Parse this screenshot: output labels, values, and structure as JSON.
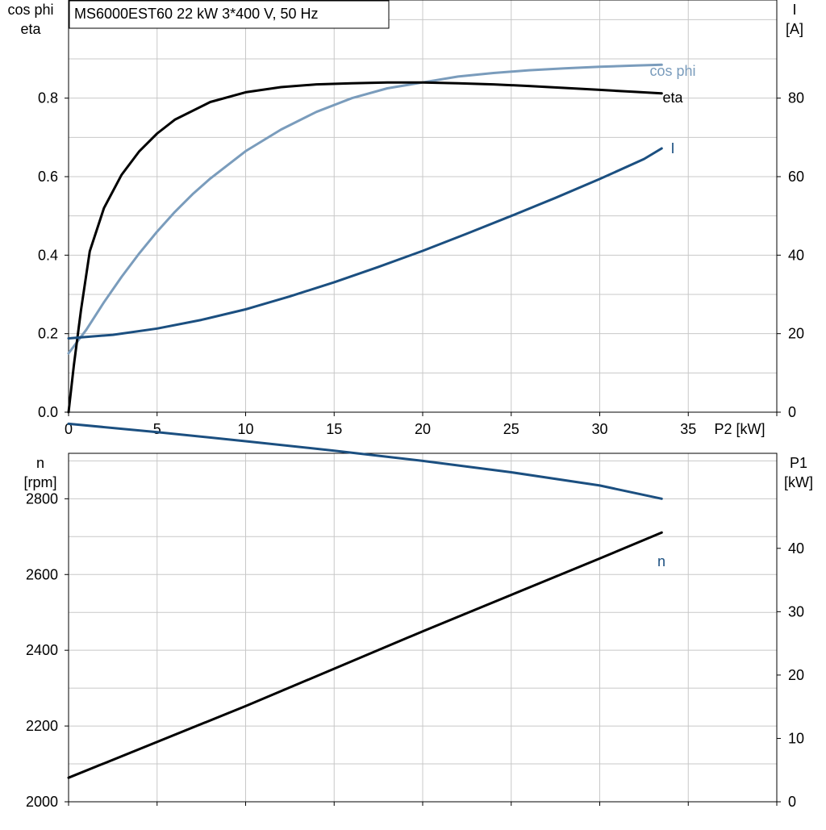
{
  "header": {
    "title": "MS6000EST60   22 kW   3*400 V, 50 Hz"
  },
  "colors": {
    "cos_phi": "#7a9cbc",
    "eta": "#000000",
    "current": "#1b4f80",
    "speed": "#1b4f80",
    "p1": "#000000",
    "grid": "#c8c8c8"
  },
  "chart_data": [
    {
      "type": "line",
      "title": "MS6000EST60   22 kW   3*400 V, 50 Hz",
      "xlabel": "P2 [kW]",
      "xlim": [
        0,
        40
      ],
      "xticks": [
        "0",
        "5",
        "10",
        "15",
        "20",
        "25",
        "30",
        "35"
      ],
      "ylabel_left": [
        "cos phi",
        "eta"
      ],
      "ylim_left": [
        0,
        1.05
      ],
      "yticks_left": [
        "0.0",
        "0.2",
        "0.4",
        "0.6",
        "0.8"
      ],
      "ylabel_right": [
        "I",
        "[A]"
      ],
      "ylim_right": [
        0,
        105
      ],
      "yticks_right": [
        "0",
        "20",
        "40",
        "60",
        "80"
      ],
      "grid": true,
      "series": [
        {
          "name": "cos phi",
          "axis": "left",
          "color": "#7a9cbc",
          "x": [
            0,
            0.5,
            1,
            2,
            3,
            4,
            5,
            6,
            7,
            8,
            10,
            12,
            14,
            16,
            18,
            20,
            22,
            24,
            26,
            28,
            30,
            32,
            33.5
          ],
          "y": [
            0.15,
            0.18,
            0.21,
            0.28,
            0.345,
            0.405,
            0.46,
            0.51,
            0.555,
            0.595,
            0.665,
            0.72,
            0.765,
            0.8,
            0.825,
            0.84,
            0.855,
            0.864,
            0.871,
            0.876,
            0.88,
            0.883,
            0.885
          ]
        },
        {
          "name": "eta",
          "axis": "left",
          "color": "#000000",
          "x": [
            0,
            0.3,
            0.7,
            1.2,
            2,
            3,
            4,
            5,
            6,
            8,
            10,
            12,
            14,
            16,
            18,
            20,
            22,
            24,
            26,
            28,
            30,
            32,
            33.5
          ],
          "y": [
            0,
            0.12,
            0.26,
            0.41,
            0.52,
            0.605,
            0.665,
            0.71,
            0.745,
            0.79,
            0.815,
            0.828,
            0.835,
            0.838,
            0.84,
            0.84,
            0.838,
            0.835,
            0.831,
            0.826,
            0.821,
            0.816,
            0.812
          ]
        },
        {
          "name": "I",
          "axis": "right",
          "color": "#1b4f80",
          "x": [
            0,
            2.5,
            5,
            7.5,
            10,
            12.5,
            15,
            17.5,
            20,
            22.5,
            25,
            27.5,
            30,
            32.5,
            33.5
          ],
          "y": [
            18.8,
            19.7,
            21.3,
            23.5,
            26.2,
            29.5,
            33.1,
            37,
            41.1,
            45.5,
            50,
            54.6,
            59.4,
            64.5,
            67.2
          ]
        }
      ],
      "annotations": [
        "cos phi",
        "eta",
        "I"
      ]
    },
    {
      "type": "line",
      "xlabel": "",
      "xlim": [
        0,
        40
      ],
      "ylabel_left": [
        "n",
        "[rpm]"
      ],
      "ylim_left": [
        2000,
        2920
      ],
      "yticks_left": [
        "2000",
        "2200",
        "2400",
        "2600",
        "2800"
      ],
      "ylabel_right": [
        "P1",
        "[kW]"
      ],
      "ylim_right": [
        0,
        55
      ],
      "yticks_right": [
        "0",
        "10",
        "20",
        "30",
        "40"
      ],
      "grid": true,
      "series": [
        {
          "name": "n",
          "axis": "left",
          "color": "#1b4f80",
          "x": [
            0,
            5,
            10,
            15,
            20,
            25,
            30,
            33.5
          ],
          "y": [
            2998,
            2976,
            2952,
            2927,
            2900,
            2870,
            2835,
            2800
          ]
        },
        {
          "name": "P1",
          "axis": "right",
          "color": "#000000",
          "x": [
            0,
            10,
            20,
            30,
            33.5
          ],
          "y": [
            3.8,
            15.1,
            26.9,
            38.4,
            42.5
          ]
        }
      ],
      "annotations": [
        "n"
      ]
    }
  ]
}
